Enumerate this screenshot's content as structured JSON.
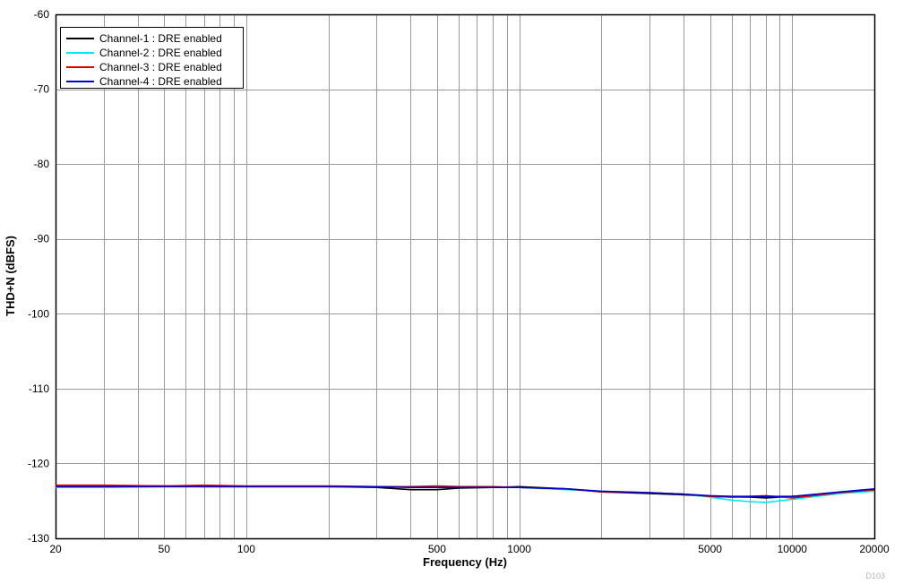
{
  "chart_data": {
    "type": "line",
    "title": "",
    "xlabel": "Frequency (Hz)",
    "ylabel": "THD+N (dBFS)",
    "figure_id": "D103",
    "x_scale": "log",
    "xlim": [
      20,
      20000
    ],
    "ylim": [
      -130,
      -60
    ],
    "y_ticks": [
      -60,
      -70,
      -80,
      -90,
      -100,
      -110,
      -120,
      -130
    ],
    "x_tick_labels": [
      20,
      50,
      100,
      500,
      1000,
      5000,
      10000,
      20000
    ],
    "x_gridlines": [
      20,
      30,
      40,
      50,
      60,
      70,
      80,
      90,
      100,
      200,
      300,
      400,
      500,
      600,
      700,
      800,
      900,
      1000,
      2000,
      3000,
      4000,
      5000,
      6000,
      7000,
      8000,
      9000,
      10000,
      20000
    ],
    "grid_color": "#9a9a9a",
    "legend_position": "top-left",
    "x": [
      20,
      30,
      50,
      70,
      100,
      150,
      200,
      300,
      400,
      500,
      600,
      800,
      1000,
      1500,
      2000,
      3000,
      4000,
      5000,
      6000,
      7000,
      8000,
      10000,
      15000,
      20000
    ],
    "series": [
      {
        "name": "Channel-1 : DRE enabled",
        "color": "#000000",
        "values": [
          -123.0,
          -123.0,
          -123.0,
          -123.1,
          -123.1,
          -123.1,
          -123.1,
          -123.2,
          -123.5,
          -123.5,
          -123.3,
          -123.2,
          -123.1,
          -123.4,
          -123.8,
          -124.0,
          -124.2,
          -124.4,
          -124.5,
          -124.5,
          -124.6,
          -124.4,
          -123.9,
          -123.6
        ]
      },
      {
        "name": "Channel-2 : DRE enabled",
        "color": "#00e5ee",
        "values": [
          -123.2,
          -123.2,
          -123.1,
          -123.1,
          -123.1,
          -123.1,
          -123.1,
          -123.1,
          -123.1,
          -123.2,
          -123.1,
          -123.2,
          -123.2,
          -123.5,
          -123.7,
          -123.9,
          -124.1,
          -124.5,
          -124.9,
          -125.1,
          -125.2,
          -124.8,
          -124.0,
          -123.7
        ]
      },
      {
        "name": "Channel-3 : DRE enabled",
        "color": "#e00000",
        "values": [
          -122.9,
          -122.9,
          -123.0,
          -122.9,
          -123.0,
          -123.0,
          -123.0,
          -123.1,
          -123.1,
          -123.0,
          -123.1,
          -123.1,
          -123.2,
          -123.4,
          -123.8,
          -123.9,
          -124.1,
          -124.4,
          -124.5,
          -124.4,
          -124.3,
          -124.6,
          -123.9,
          -123.5
        ]
      },
      {
        "name": "Channel-4 : DRE enabled",
        "color": "#0000cd",
        "values": [
          -123.1,
          -123.1,
          -123.1,
          -123.1,
          -123.1,
          -123.1,
          -123.1,
          -123.1,
          -123.2,
          -123.2,
          -123.2,
          -123.2,
          -123.2,
          -123.4,
          -123.7,
          -123.9,
          -124.1,
          -124.3,
          -124.4,
          -124.4,
          -124.4,
          -124.4,
          -123.8,
          -123.4
        ]
      }
    ]
  }
}
